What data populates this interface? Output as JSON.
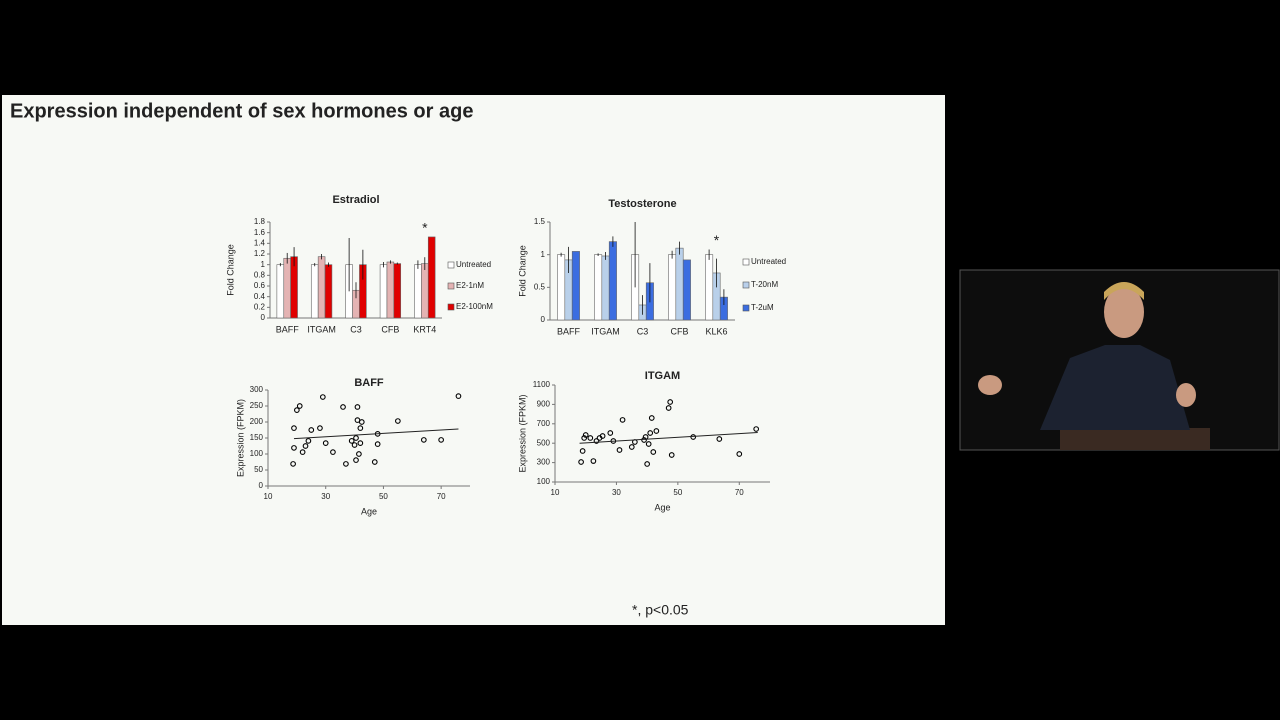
{
  "slide": {
    "title": "Expression independent of sex hormones or age",
    "footnote": "*, p<0.05"
  },
  "chart_data": [
    {
      "type": "bar",
      "title": "Estradiol",
      "y_label": "Fold Change",
      "annotation": "*",
      "categories": [
        "BAFF",
        "ITGAM",
        "C3",
        "CFB",
        "KRT4"
      ],
      "series": [
        {
          "name": "Untreated",
          "color": "#ffffff",
          "values": [
            1.0,
            1.0,
            1.0,
            1.0,
            1.0
          ],
          "errors": [
            0.03,
            0.03,
            0.5,
            0.05,
            0.08
          ]
        },
        {
          "name": "E2-1nM",
          "color": "#e4b3b3",
          "values": [
            1.12,
            1.15,
            0.52,
            1.05,
            1.02
          ],
          "errors": [
            0.1,
            0.05,
            0.15,
            0.03,
            0.12
          ]
        },
        {
          "name": "E2-100nM",
          "color": "#e00000",
          "values": [
            1.15,
            1.0,
            1.0,
            1.02,
            1.52
          ],
          "errors": [
            0.18,
            0.04,
            0.28,
            0.02,
            0
          ]
        }
      ],
      "ylim": [
        0,
        1.8
      ],
      "yticks": [
        0,
        0.2,
        0.4,
        0.6,
        0.8,
        1,
        1.2,
        1.4,
        1.6,
        1.8
      ]
    },
    {
      "type": "bar",
      "title": "Testosterone",
      "y_label": "Fold Change",
      "annotation": "*",
      "categories": [
        "BAFF",
        "ITGAM",
        "C3",
        "CFB",
        "KLK6"
      ],
      "series": [
        {
          "name": "Untreated",
          "color": "#ffffff",
          "values": [
            1.0,
            1.0,
            1.0,
            1.0,
            1.0
          ],
          "errors": [
            0.03,
            0.02,
            0.5,
            0.06,
            0.08
          ]
        },
        {
          "name": "T-20nM",
          "color": "#b9d0ea",
          "values": [
            0.92,
            0.98,
            0.23,
            1.1,
            0.72
          ],
          "errors": [
            0.2,
            0.06,
            0.15,
            0.1,
            0.22
          ]
        },
        {
          "name": "T-2uM",
          "color": "#3b6de0",
          "values": [
            1.05,
            1.2,
            0.57,
            0.92,
            0.35
          ],
          "errors": [
            0,
            0.08,
            0.3,
            0,
            0.12
          ]
        }
      ],
      "ylim": [
        0,
        1.5
      ],
      "yticks": [
        0,
        0.5,
        1,
        1.5
      ]
    },
    {
      "type": "scatter",
      "title": "BAFF",
      "x_label": "Age",
      "y_label": "Expression (FPKM)",
      "color": "#000000",
      "x": [
        18.7,
        19,
        19,
        20,
        21,
        22,
        23,
        24,
        25,
        28,
        29,
        30,
        32.5,
        36,
        37,
        39,
        40,
        40.5,
        41,
        41,
        42,
        41.5,
        40.5,
        42.5,
        42,
        47,
        48,
        48,
        55,
        64,
        70,
        76
      ],
      "y": [
        69,
        119,
        181,
        237,
        250,
        106,
        125,
        141,
        175,
        181,
        278,
        134,
        106,
        247,
        69,
        141,
        128,
        150,
        247,
        206,
        181,
        100,
        81,
        200,
        134,
        75,
        131,
        163,
        203,
        144,
        144,
        281
      ],
      "trendline": {
        "x": [
          19,
          76
        ],
        "y": [
          148,
          178
        ]
      },
      "xlim": [
        10,
        80
      ],
      "xticks": [
        10,
        30,
        50,
        70
      ],
      "ylim": [
        0,
        300
      ],
      "yticks": [
        0,
        50,
        100,
        150,
        200,
        250,
        300
      ]
    },
    {
      "type": "scatter",
      "title": "ITGAM",
      "x_label": "Age",
      "y_label": "Expression (FPKM)",
      "color": "#000000",
      "x": [
        18.5,
        19,
        19.5,
        20,
        21.5,
        22.5,
        23.5,
        24.5,
        25.5,
        28,
        29,
        31,
        32,
        35,
        36,
        39,
        39.5,
        40,
        40.5,
        41,
        41.5,
        42,
        43,
        47,
        47.5,
        48,
        55,
        63.5,
        70,
        75.5
      ],
      "y": [
        306,
        420,
        554,
        585,
        554,
        316,
        523,
        554,
        574,
        605,
        523,
        430,
        740,
        461,
        512,
        533,
        564,
        286,
        492,
        605,
        760,
        409,
        626,
        863,
        925,
        378,
        564,
        543,
        389,
        646
      ],
      "trendline": {
        "x": [
          18,
          76
        ],
        "y": [
          500,
          610
        ]
      },
      "xlim": [
        10,
        80
      ],
      "xticks": [
        10,
        30,
        50,
        70
      ],
      "ylim": [
        100,
        1100
      ],
      "yticks": [
        100,
        300,
        500,
        700,
        900,
        1100
      ]
    }
  ]
}
